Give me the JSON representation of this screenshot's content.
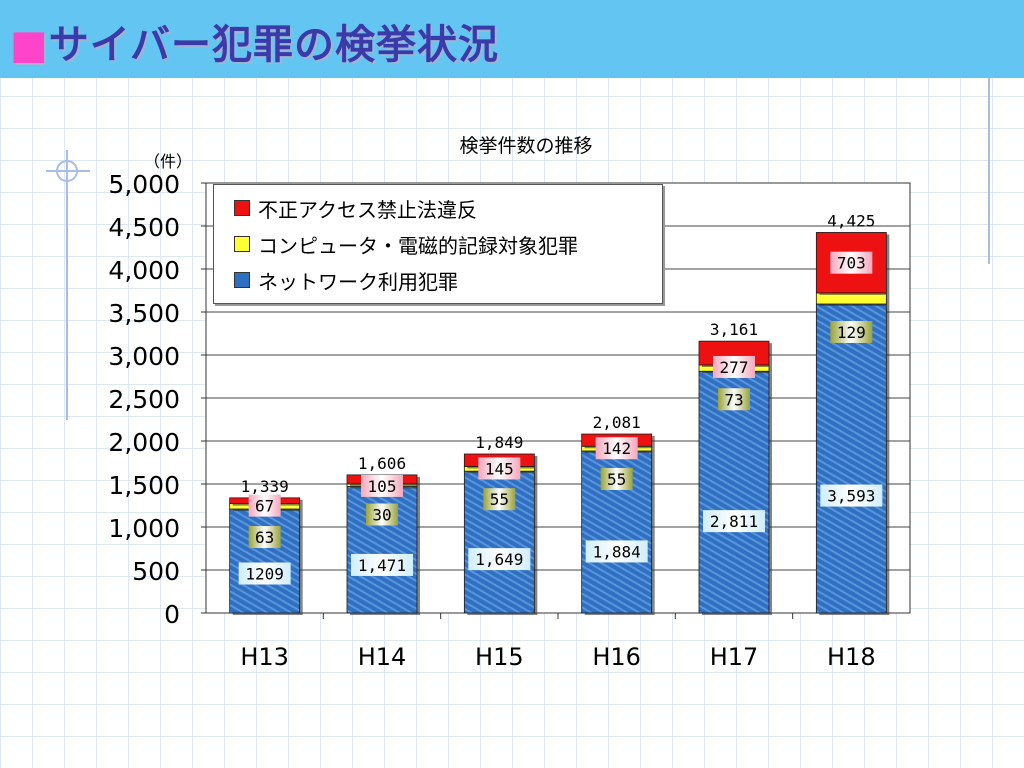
{
  "header": {
    "title_mark": "■",
    "title": "サイバー犯罪の検挙状況"
  },
  "chart_data": {
    "type": "bar",
    "stacked": true,
    "title": "検挙件数の推移",
    "ylabel": "（件）",
    "xlabel": "",
    "ylim": [
      0,
      5000
    ],
    "yticks": [
      "0",
      "500",
      "1,000",
      "1,500",
      "2,000",
      "2,500",
      "3,000",
      "3,500",
      "4,000",
      "4,500",
      "5,000"
    ],
    "grid": true,
    "legend_position": "top-left",
    "categories": [
      "H13",
      "H14",
      "H15",
      "H16",
      "H17",
      "H18"
    ],
    "series": [
      {
        "name": "ネットワーク利用犯罪",
        "color": "#2f6fc0",
        "values": [
          1209,
          1471,
          1649,
          1884,
          2811,
          3593
        ],
        "labels": [
          "1209",
          "1,471",
          "1,649",
          "1,884",
          "2,811",
          "3,593"
        ]
      },
      {
        "name": "コンピュータ・電磁的記録対象犯罪",
        "color": "#ffff33",
        "values": [
          63,
          30,
          55,
          55,
          73,
          129
        ],
        "labels": [
          "63",
          "30",
          "55",
          "55",
          "73",
          "129"
        ]
      },
      {
        "name": "不正アクセス禁止法違反",
        "color": "#ee1111",
        "values": [
          67,
          105,
          145,
          142,
          277,
          703
        ],
        "labels": [
          "67",
          "105",
          "145",
          "142",
          "277",
          "703"
        ]
      }
    ],
    "totals": [
      1339,
      1606,
      1849,
      2081,
      3161,
      4425
    ],
    "total_labels": [
      "1,339",
      "1,606",
      "1,849",
      "2,081",
      "3,161",
      "4,425"
    ]
  }
}
